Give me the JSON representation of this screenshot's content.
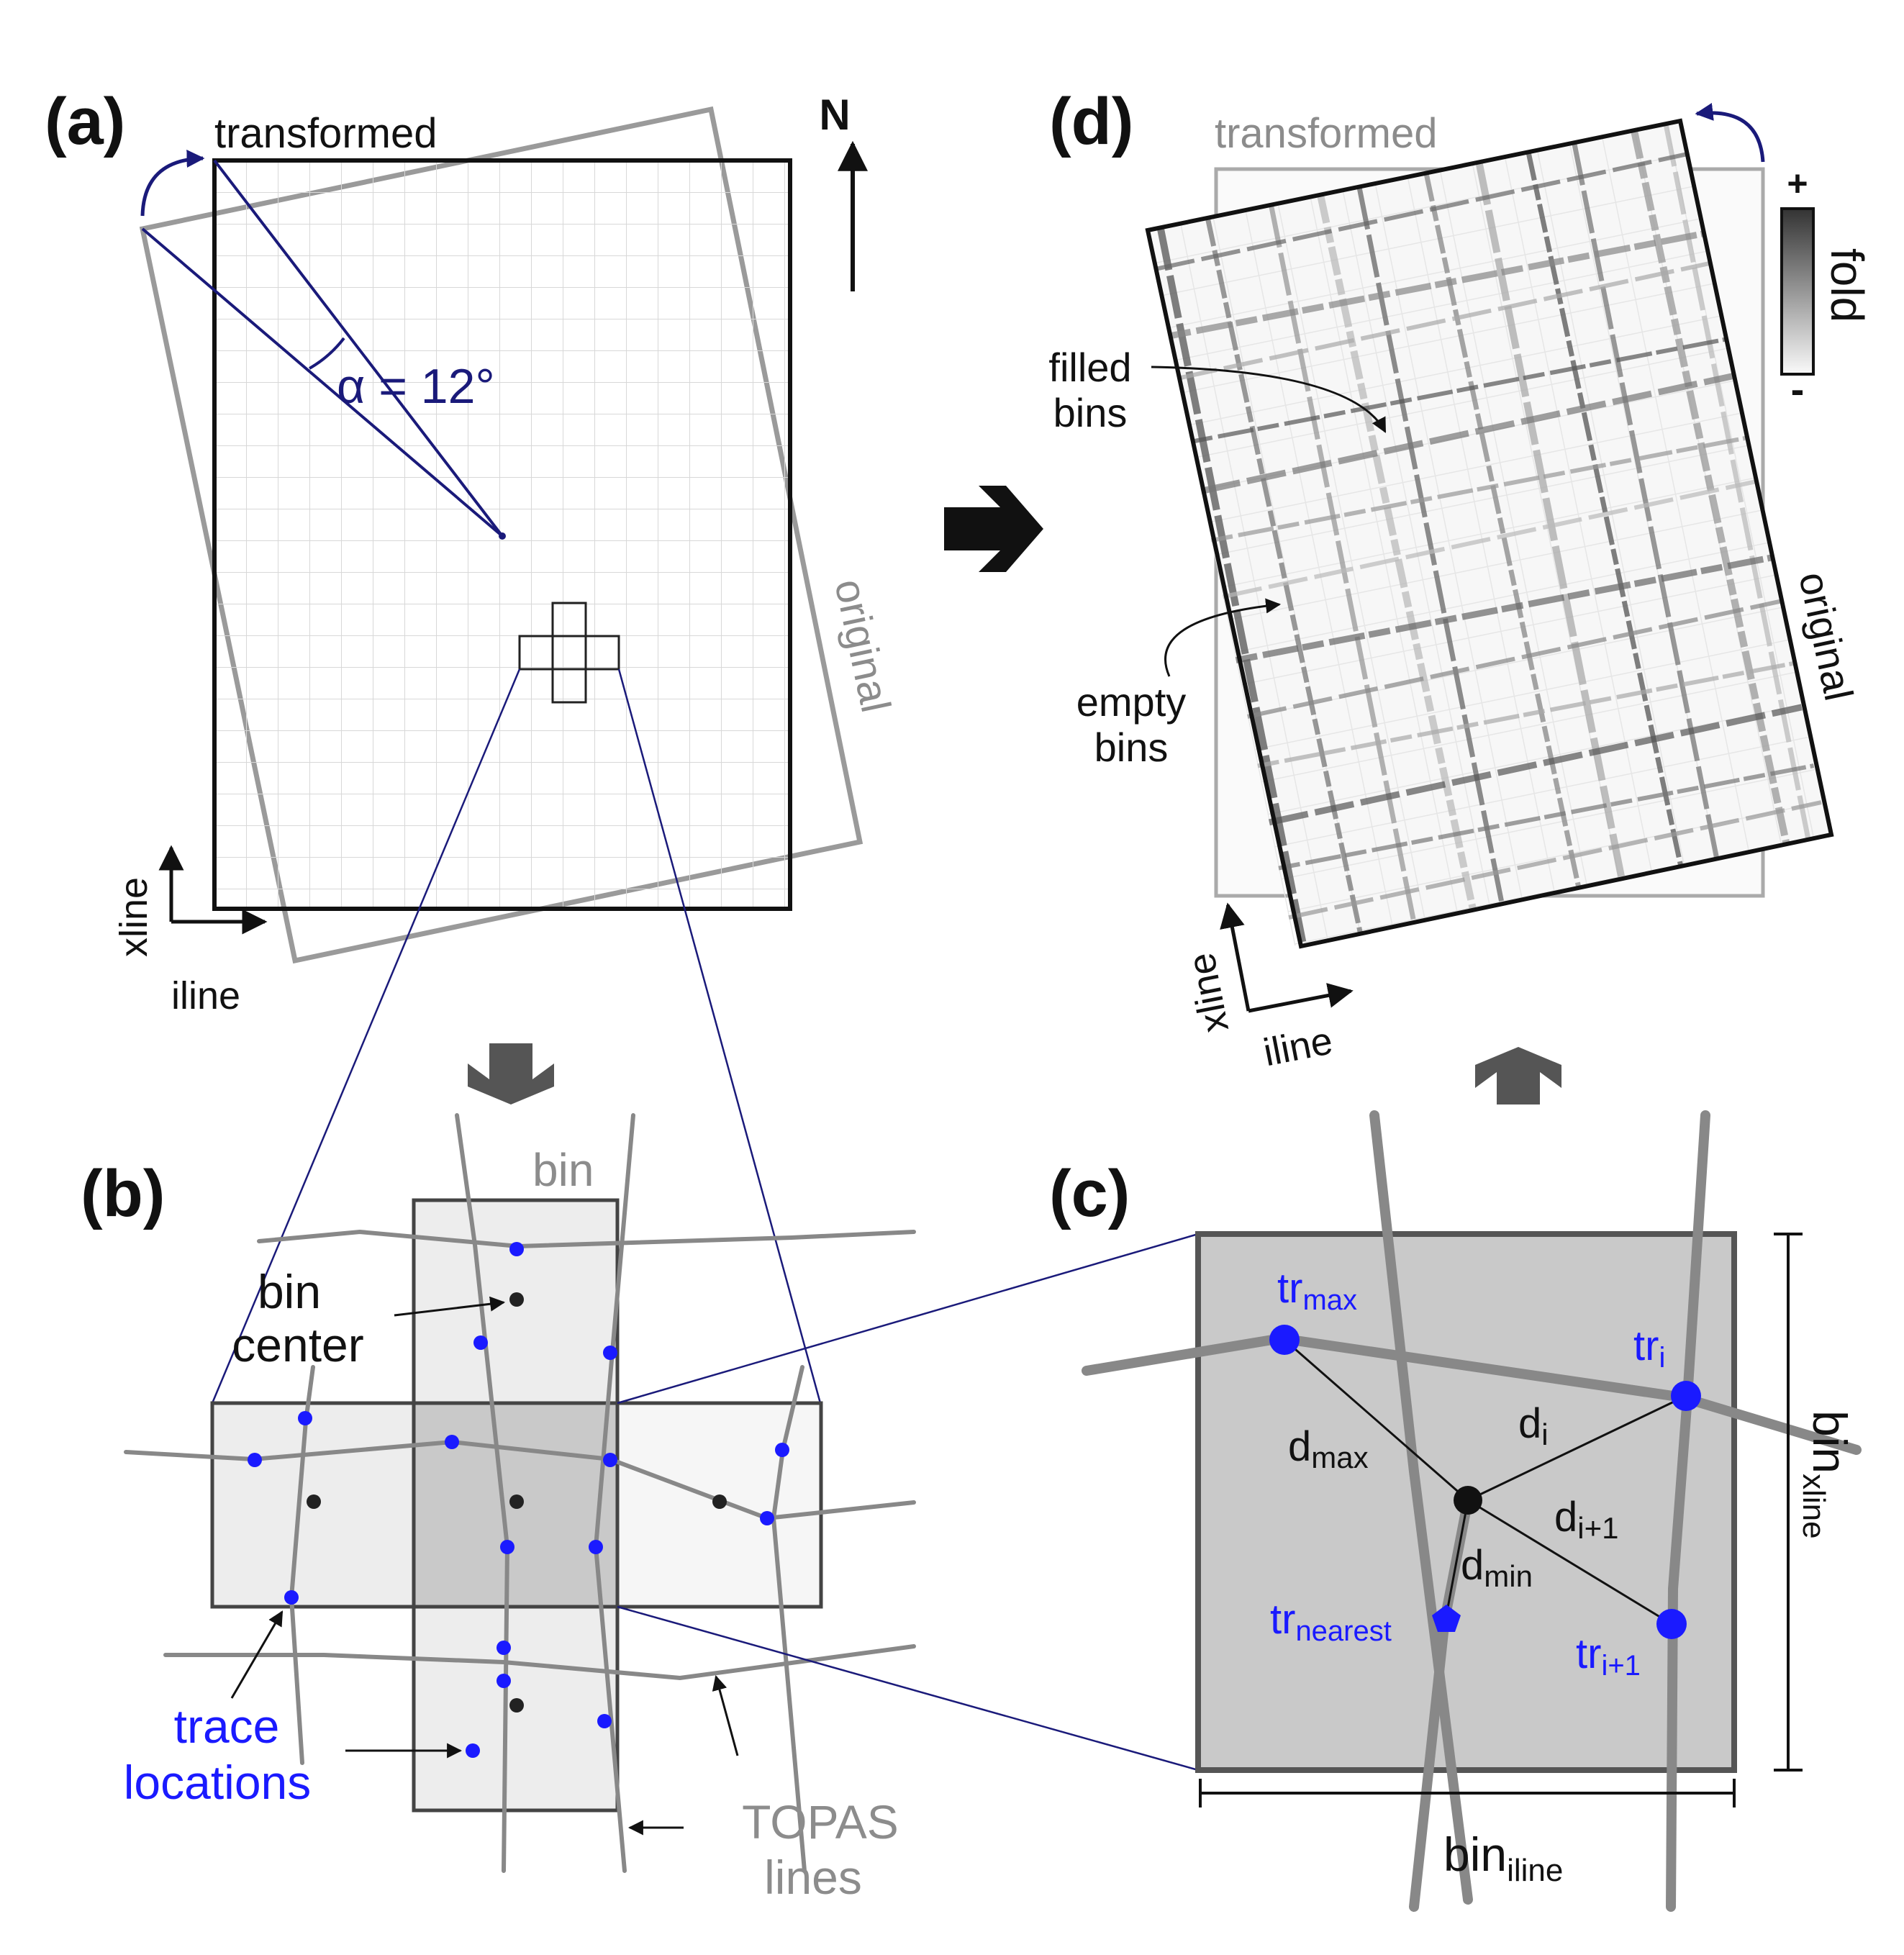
{
  "panels": {
    "a": {
      "label": "(a)",
      "transformed": "transformed",
      "original": "original",
      "angle": "α = 12°",
      "north": "N",
      "axis_x": "iline",
      "axis_y": "xline"
    },
    "b": {
      "label": "(b)",
      "bin": "bin",
      "bin_center_1": "bin",
      "bin_center_2": "center",
      "trace_1": "trace",
      "trace_2": "locations",
      "topas_1": "TOPAS",
      "topas_2": "lines"
    },
    "c": {
      "label": "(c)",
      "tr": "tr",
      "max": "max",
      "i": "i",
      "i1": "i+1",
      "nearest": "nearest",
      "d": "d",
      "min": "min",
      "bin": "bin",
      "iline": "iline",
      "xline": "xline"
    },
    "d": {
      "label": "(d)",
      "transformed": "transformed",
      "original": "original",
      "filled_1": "filled",
      "filled_2": "bins",
      "empty_1": "empty",
      "empty_2": "bins",
      "fold": "fold",
      "plus": "+",
      "minus": "-",
      "axis_x": "iline",
      "axis_y": "xline"
    }
  },
  "colors": {
    "navy": "#1a1a7a",
    "trace_blue": "#1a1aff",
    "gray_text": "#8c8c8c",
    "line_gray": "#888888"
  }
}
